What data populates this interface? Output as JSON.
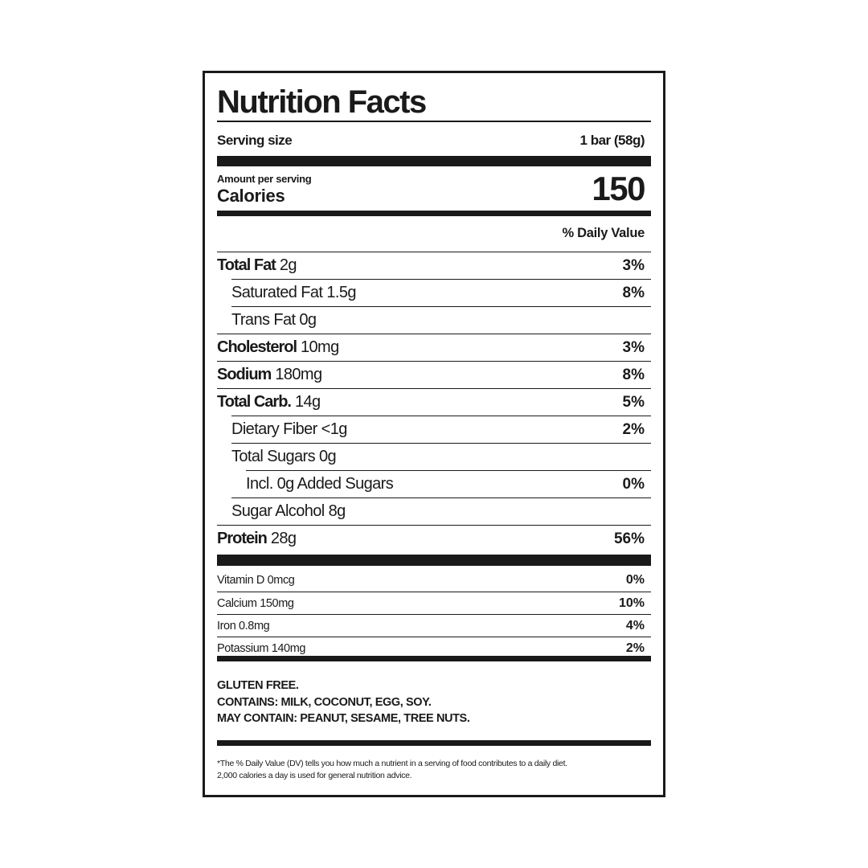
{
  "title": "Nutrition Facts",
  "serving": {
    "label": "Serving size",
    "value": "1 bar (58g)"
  },
  "calories": {
    "amount_label": "Amount per serving",
    "label": "Calories",
    "value": "150"
  },
  "dv_header": "% Daily Value",
  "nutrients": [
    {
      "name": "Total Fat",
      "amount": "2g",
      "dv": "3%",
      "bold": true,
      "indent": 0
    },
    {
      "name": "Saturated Fat",
      "amount": "1.5g",
      "dv": "8%",
      "bold": false,
      "indent": 1
    },
    {
      "name": "Trans Fat",
      "amount": "0g",
      "dv": "",
      "bold": false,
      "indent": 1
    },
    {
      "name": "Cholesterol",
      "amount": "10mg",
      "dv": "3%",
      "bold": true,
      "indent": 0
    },
    {
      "name": "Sodium",
      "amount": "180mg",
      "dv": "8%",
      "bold": true,
      "indent": 0
    },
    {
      "name": "Total Carb.",
      "amount": "14g",
      "dv": "5%",
      "bold": true,
      "indent": 0
    },
    {
      "name": "Dietary Fiber",
      "amount": "<1g",
      "dv": "2%",
      "bold": false,
      "indent": 1
    },
    {
      "name": "Total Sugars",
      "amount": "0g",
      "dv": "",
      "bold": false,
      "indent": 1
    },
    {
      "name": "Incl. 0g Added Sugars",
      "amount": "",
      "dv": "0%",
      "bold": false,
      "indent": 2
    },
    {
      "name": "Sugar Alcohol",
      "amount": "8g",
      "dv": "",
      "bold": false,
      "indent": 1
    },
    {
      "name": "Protein",
      "amount": "28g",
      "dv": "56%",
      "bold": true,
      "indent": 0
    }
  ],
  "vitamins": [
    {
      "name": "Vitamin D 0mcg",
      "dv": "0%"
    },
    {
      "name": "Calcium 150mg",
      "dv": "10%"
    },
    {
      "name": "Iron 0.8mg",
      "dv": "4%"
    },
    {
      "name": "Potassium 140mg",
      "dv": "2%"
    }
  ],
  "allergens": [
    "GLUTEN FREE.",
    "CONTAINS: MILK, COCONUT, EGG, SOY.",
    "MAY CONTAIN: PEANUT, SESAME, TREE NUTS."
  ],
  "footnote": [
    "*The % Daily Value (DV) tells you how much a nutrient in a serving of food contributes to a daily diet.",
    "2,000 calories a day is used for general nutrition advice."
  ]
}
